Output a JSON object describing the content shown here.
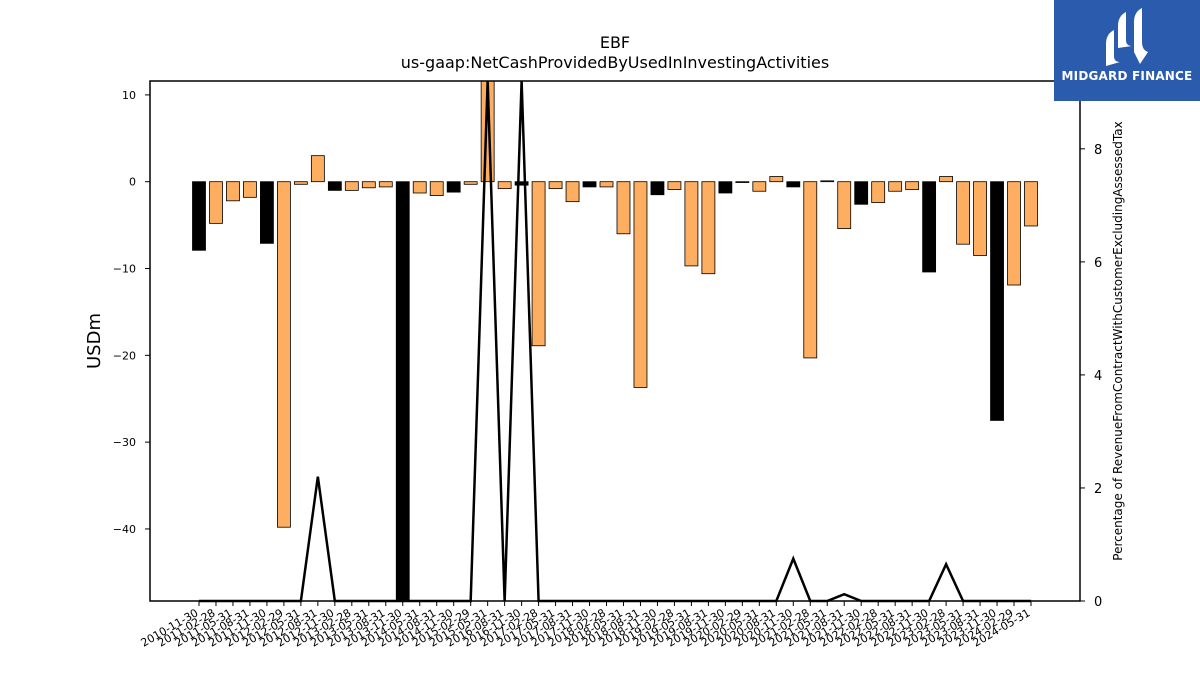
{
  "logo": {
    "text": "MIDGARD FINANCE",
    "color": "#2b5bac"
  },
  "chart_data": {
    "type": "bar",
    "title": "EBF",
    "subtitle": "us-gaap:NetCashProvidedByUsedInInvestingActivities",
    "ylabel": "USDm",
    "y2label": "Percentage of RevenueFromContractWithCustomerExcludingAssessedTax",
    "ylim": [
      -48.3,
      11.6
    ],
    "y2lim": [
      0,
      9.2
    ],
    "yticks": [
      10,
      0,
      -10,
      -20,
      -30,
      -40
    ],
    "y2ticks": [
      0,
      2,
      4,
      6,
      8
    ],
    "grid": false,
    "colors": {
      "annual": "#000000",
      "quarterly": "#fdae61",
      "line": "#000000"
    },
    "xticks": [
      "2010-11-30",
      "2011-02-28",
      "2011-05-31",
      "2011-08-31",
      "2011-11-30",
      "2012-02-29",
      "2012-05-31",
      "2012-08-31",
      "2012-11-30",
      "2013-02-28",
      "2013-05-31",
      "2013-08-31",
      "2013-11-30",
      "2014-05-31",
      "2014-08-31",
      "2014-11-30",
      "2015-02-29",
      "2015-05-31",
      "2016-08-31",
      "2016-11-30",
      "2017-02-28",
      "2017-05-31",
      "2017-08-31",
      "2017-11-30",
      "2018-02-28",
      "2018-05-31",
      "2018-08-31",
      "2018-11-30",
      "2019-02-28",
      "2019-05-31",
      "2019-08-31",
      "2019-11-30",
      "2020-02-29",
      "2020-05-31",
      "2020-08-31",
      "2020-11-30",
      "2021-02-28",
      "2021-05-31",
      "2021-08-31",
      "2021-11-30",
      "2022-02-28",
      "2022-05-31",
      "2022-08-31",
      "2022-11-30",
      "2023-02-28",
      "2023-05-31",
      "2023-08-31",
      "2023-11-30",
      "2024-02-29",
      "2024-05-31"
    ],
    "values": [
      -7.9,
      -4.8,
      -2.2,
      -1.8,
      -7.1,
      -39.8,
      -0.3,
      3.0,
      -1.0,
      -1.0,
      -0.7,
      -0.6,
      -48.3,
      -1.3,
      -1.6,
      -1.2,
      -0.3,
      11.6,
      -0.8,
      -0.4,
      -18.9,
      -0.8,
      -2.3,
      -0.6,
      -0.6,
      -6.0,
      -23.7,
      -1.5,
      -0.9,
      -9.7,
      -10.6,
      -1.3,
      -0.1,
      -1.1,
      0.6,
      -0.6,
      -20.3,
      0.1,
      -5.4,
      -2.6,
      -2.4,
      -1.1,
      -0.9,
      -10.4,
      0.6,
      -7.2,
      -8.5,
      -27.5,
      -11.9,
      -5.1
    ],
    "annual": [
      true,
      false,
      false,
      false,
      true,
      false,
      false,
      false,
      true,
      false,
      false,
      false,
      true,
      false,
      false,
      true,
      false,
      false,
      false,
      true,
      false,
      false,
      false,
      true,
      false,
      false,
      false,
      true,
      false,
      false,
      false,
      true,
      false,
      false,
      false,
      true,
      false,
      false,
      false,
      true,
      false,
      false,
      false,
      true,
      false,
      false,
      false,
      true,
      false,
      false
    ],
    "line_values": [
      0,
      0,
      0,
      0,
      0,
      0,
      0,
      2.2,
      0,
      0,
      0,
      0,
      0,
      0,
      0,
      0,
      0,
      9.2,
      0,
      9.2,
      0,
      0,
      0,
      0,
      0,
      0,
      0,
      0,
      0,
      0,
      0,
      0,
      0,
      0,
      0,
      0.75,
      0,
      0,
      0.12,
      0,
      0,
      0,
      0,
      0,
      0.65,
      0,
      0,
      0,
      0,
      0
    ]
  }
}
